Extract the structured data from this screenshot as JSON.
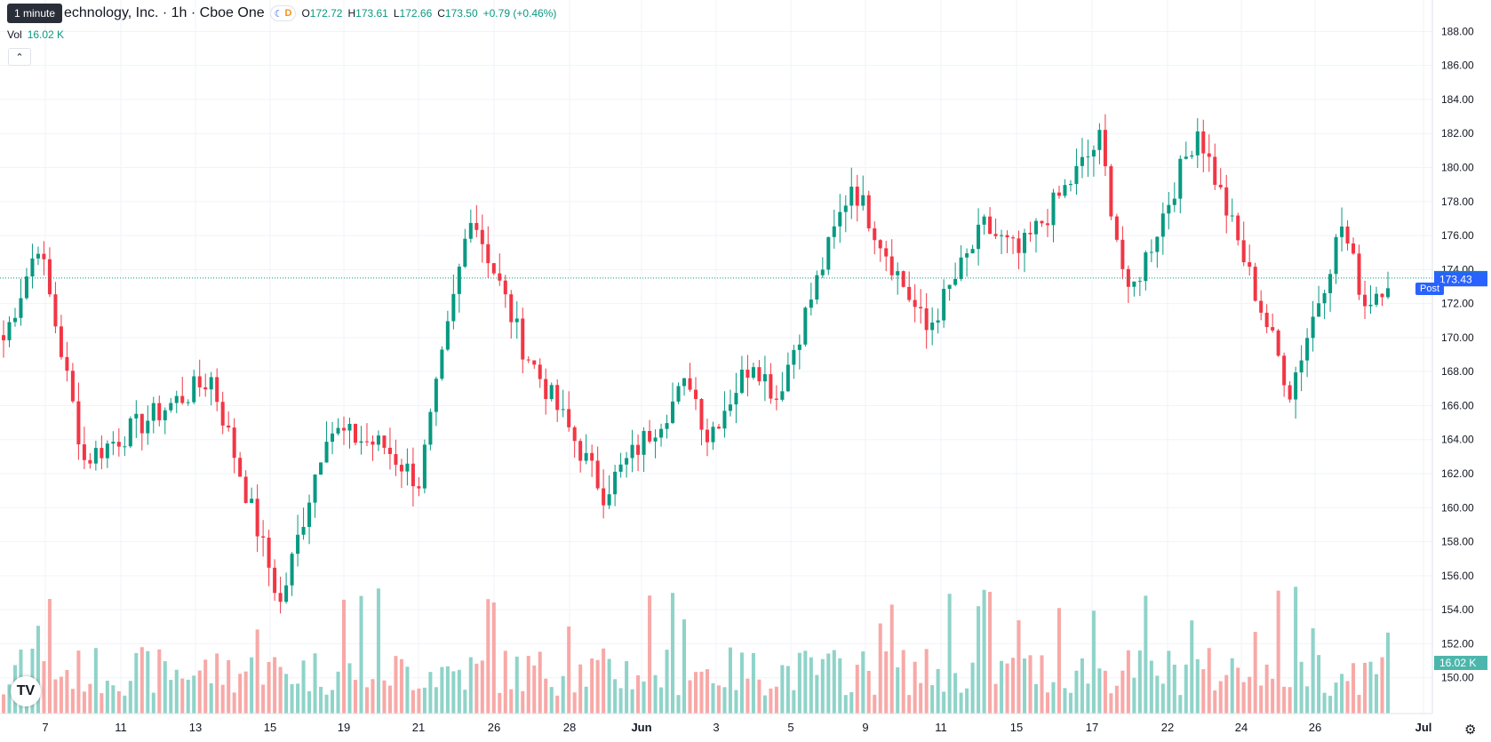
{
  "tooltip": "1 minute",
  "symbol": {
    "title": "echnology, Inc. · 1h · Cboe One",
    "session_icon": "moon-icon",
    "delay_mark": "D",
    "o_label": "O",
    "o": "172.72",
    "h_label": "H",
    "h": "173.61",
    "l_label": "L",
    "l": "172.66",
    "c_label": "C",
    "c": "173.50",
    "change": "+0.79 (+0.46%)"
  },
  "volume": {
    "label": "Vol",
    "value": "16.02 K"
  },
  "collapse_icon": "chevron-up-icon",
  "logo_text": "TV",
  "settings_icon": "gear-icon",
  "colors": {
    "up": "#089981",
    "down": "#f23645",
    "up_vol": "#8fd3c9",
    "down_vol": "#f7a9a7",
    "grid": "#f0f3fa",
    "price_line": "#089981",
    "post": "#2962ff"
  },
  "chart_data": {
    "type": "candlestick",
    "interval": "1h",
    "y_ticks": [
      150,
      152,
      154,
      156,
      158,
      160,
      162,
      164,
      166,
      168,
      170,
      172,
      174,
      176,
      178,
      180,
      182,
      184,
      186,
      188
    ],
    "ylim": [
      149.2,
      188.7
    ],
    "x_ticks": [
      "7",
      "11",
      "13",
      "15",
      "19",
      "21",
      "26",
      "28",
      "Jun",
      "3",
      "5",
      "9",
      "11",
      "15",
      "17",
      "22",
      "24",
      "26",
      "Jul"
    ],
    "last_price": "173.50",
    "post_label": "Post",
    "post_price": "173.43",
    "volume_last": "16.02 K",
    "segments": [
      {
        "from": 168.9,
        "to": 175.6
      },
      {
        "from": 175.6,
        "to": 162.8
      },
      {
        "from": 162.8,
        "to": 167.6
      },
      {
        "from": 167.6,
        "to": 154.3
      },
      {
        "from": 154.3,
        "to": 164.6
      },
      {
        "from": 164.6,
        "to": 163.6
      },
      {
        "from": 163.6,
        "to": 161.5
      },
      {
        "from": 161.5,
        "to": 177.5
      },
      {
        "from": 177.5,
        "to": 169.5
      },
      {
        "from": 169.5,
        "to": 160.9
      },
      {
        "from": 160.9,
        "to": 167.5
      },
      {
        "from": 167.5,
        "to": 164.2
      },
      {
        "from": 164.2,
        "to": 168.8
      },
      {
        "from": 168.8,
        "to": 166.5
      },
      {
        "from": 166.5,
        "to": 179.1
      },
      {
        "from": 179.1,
        "to": 170.4
      },
      {
        "from": 170.4,
        "to": 176.5
      },
      {
        "from": 176.5,
        "to": 174.9
      },
      {
        "from": 174.9,
        "to": 181.6
      },
      {
        "from": 181.6,
        "to": 172.2
      },
      {
        "from": 172.2,
        "to": 182.3
      },
      {
        "from": 182.3,
        "to": 166.9
      },
      {
        "from": 166.9,
        "to": 176.6
      },
      {
        "from": 176.6,
        "to": 172.0
      },
      {
        "from": 172.0,
        "to": 173.5
      }
    ],
    "segment_counts": [
      7,
      8,
      22,
      12,
      8,
      10,
      6,
      9,
      9,
      14,
      15,
      3,
      8,
      4,
      13,
      13,
      10,
      6,
      14,
      5,
      12,
      16,
      9,
      4,
      4
    ]
  }
}
